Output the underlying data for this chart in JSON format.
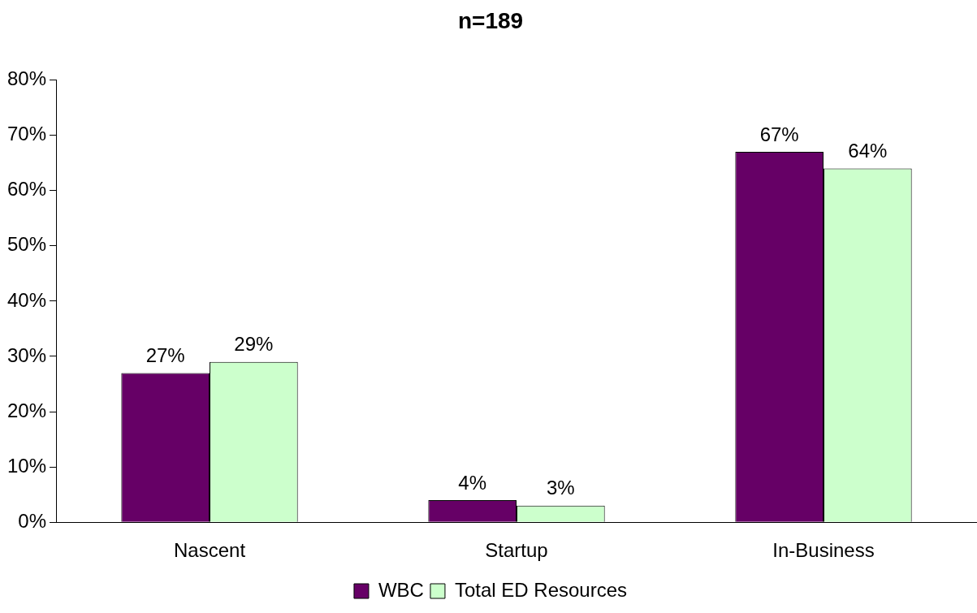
{
  "chart_data": {
    "type": "bar",
    "title": "n=189",
    "categories": [
      "Nascent",
      "Startup",
      "In-Business"
    ],
    "series": [
      {
        "name": "WBC",
        "color": "#660066",
        "values": [
          27,
          4,
          67
        ],
        "value_labels": [
          "27%",
          "4%",
          "67%"
        ]
      },
      {
        "name": "Total ED Resources",
        "color": "#ccffcc",
        "values": [
          29,
          3,
          64
        ],
        "value_labels": [
          "29%",
          "3%",
          "64%"
        ]
      }
    ],
    "ylim": [
      0,
      80
    ],
    "yticks": [
      {
        "value": 0,
        "label": "0%"
      },
      {
        "value": 10,
        "label": "10%"
      },
      {
        "value": 20,
        "label": "20%"
      },
      {
        "value": 30,
        "label": "30%"
      },
      {
        "value": 40,
        "label": "40%"
      },
      {
        "value": 50,
        "label": "50%"
      },
      {
        "value": 60,
        "label": "60%"
      },
      {
        "value": 70,
        "label": "70%"
      },
      {
        "value": 80,
        "label": "80%"
      }
    ],
    "grid": false,
    "legend": "bottom"
  }
}
